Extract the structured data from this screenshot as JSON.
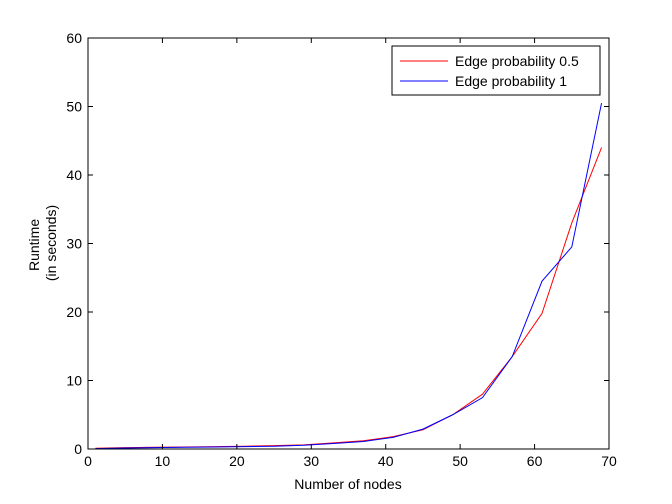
{
  "chart_data": {
    "type": "line",
    "title": "",
    "xlabel": "Number of nodes",
    "ylabel_lines": [
      "Runtime",
      "(in seconds)"
    ],
    "xlim": [
      0,
      70
    ],
    "ylim": [
      0,
      60
    ],
    "xticks": [
      0,
      10,
      20,
      30,
      40,
      50,
      60,
      70
    ],
    "yticks": [
      0,
      10,
      20,
      30,
      40,
      50,
      60
    ],
    "grid": false,
    "legend_position": "top-right",
    "series": [
      {
        "name": "Edge probability 0.5",
        "color": "#ff0000",
        "x": [
          1,
          5,
          9,
          13,
          17,
          21,
          25,
          29,
          33,
          37,
          41,
          45,
          49,
          53,
          57,
          61,
          65,
          69
        ],
        "y": [
          0.1,
          0.2,
          0.25,
          0.3,
          0.35,
          0.4,
          0.5,
          0.6,
          0.9,
          1.2,
          1.8,
          2.8,
          5.0,
          8.0,
          13.5,
          19.8,
          33.0,
          44.0
        ]
      },
      {
        "name": "Edge probability 1",
        "color": "#0000ff",
        "x": [
          1,
          5,
          9,
          13,
          17,
          21,
          25,
          29,
          33,
          37,
          41,
          45,
          49,
          53,
          57,
          61,
          65,
          69
        ],
        "y": [
          0.05,
          0.15,
          0.2,
          0.25,
          0.3,
          0.35,
          0.4,
          0.55,
          0.8,
          1.1,
          1.7,
          2.9,
          5.0,
          7.5,
          13.5,
          24.5,
          29.5,
          50.5
        ]
      }
    ]
  }
}
